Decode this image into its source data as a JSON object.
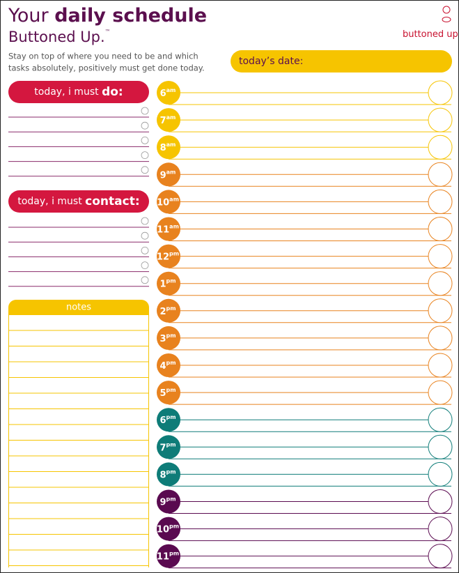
{
  "header": {
    "title_prefix": "Your",
    "title_main": "daily schedule",
    "subtitle": "Buttoned Up.",
    "trademark": "™",
    "brand": "buttoned up",
    "brand_trademark": "™",
    "description_lines": [
      "Stay on top of where you need to be and which",
      "tasks absolutely, positively must get done today."
    ]
  },
  "date_field": {
    "label": "today’s date:"
  },
  "do_section": {
    "label_prefix": "today, i must",
    "label_bold": "do:"
  },
  "contact_section": {
    "label_prefix": "today, i must",
    "label_bold": "contact:"
  },
  "notes_section": {
    "label": "notes"
  },
  "hours": [
    {
      "hour": "6",
      "suffix": "am",
      "color": "#f6c400"
    },
    {
      "hour": "7",
      "suffix": "am",
      "color": "#f6c400"
    },
    {
      "hour": "8",
      "suffix": "am",
      "color": "#f6c400"
    },
    {
      "hour": "9",
      "suffix": "am",
      "color": "#e8821e"
    },
    {
      "hour": "10",
      "suffix": "am",
      "color": "#e8821e"
    },
    {
      "hour": "11",
      "suffix": "am",
      "color": "#e8821e"
    },
    {
      "hour": "12",
      "suffix": "pm",
      "color": "#e8821e"
    },
    {
      "hour": "1",
      "suffix": "pm",
      "color": "#e8821e"
    },
    {
      "hour": "2",
      "suffix": "pm",
      "color": "#e8821e"
    },
    {
      "hour": "3",
      "suffix": "pm",
      "color": "#e8821e"
    },
    {
      "hour": "4",
      "suffix": "pm",
      "color": "#e8821e"
    },
    {
      "hour": "5",
      "suffix": "pm",
      "color": "#e8821e"
    },
    {
      "hour": "6",
      "suffix": "pm",
      "color": "#0e7c78"
    },
    {
      "hour": "7",
      "suffix": "pm",
      "color": "#0e7c78"
    },
    {
      "hour": "8",
      "suffix": "pm",
      "color": "#0e7c78"
    },
    {
      "hour": "9",
      "suffix": "pm",
      "color": "#5a0a50"
    },
    {
      "hour": "10",
      "suffix": "pm",
      "color": "#5a0a50"
    },
    {
      "hour": "11",
      "suffix": "pm",
      "color": "#5a0a50"
    }
  ]
}
